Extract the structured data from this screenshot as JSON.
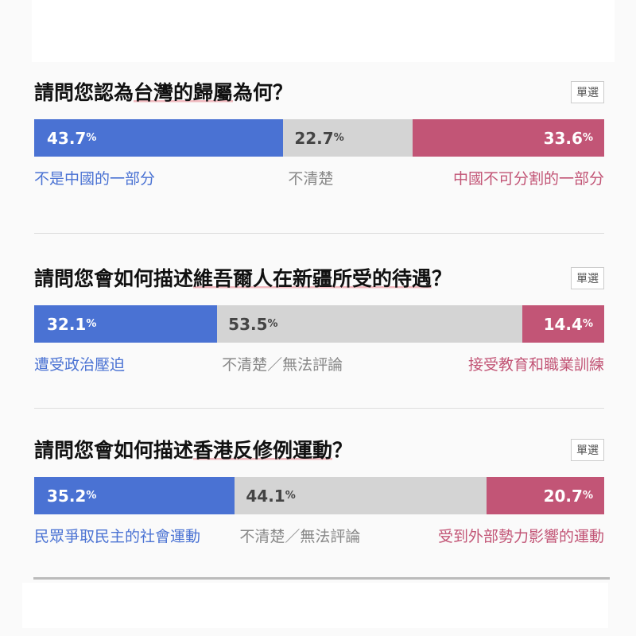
{
  "chart_data": [
    {
      "type": "bar",
      "stacked": true,
      "orientation": "horizontal",
      "title_parts": [
        "請問您認為",
        "台灣的歸屬",
        "為何？"
      ],
      "badge": "單選",
      "categories": [
        "不是中國的一部分",
        "不清楚",
        "中國不可分割的一部分"
      ],
      "values": [
        43.7,
        22.7,
        33.6
      ],
      "value_labels": [
        "43.7",
        "22.7",
        "33.6"
      ],
      "unit": "%"
    },
    {
      "type": "bar",
      "stacked": true,
      "orientation": "horizontal",
      "title_parts": [
        "請問您會如何描述",
        "維吾爾人在新疆所受的待遇",
        "？"
      ],
      "badge": "單選",
      "categories": [
        "遭受政治壓迫",
        "不清楚／無法評論",
        "接受教育和職業訓練"
      ],
      "values": [
        32.1,
        53.5,
        14.4
      ],
      "value_labels": [
        "32.1",
        "53.5",
        "14.4"
      ],
      "unit": "%"
    },
    {
      "type": "bar",
      "stacked": true,
      "orientation": "horizontal",
      "title_parts": [
        "請問您會如何描述",
        "香港反修例運動",
        "？"
      ],
      "badge": "單選",
      "categories": [
        "民眾爭取民主的社會運動",
        "不清楚／無法評論",
        "受到外部勢力影響的運動"
      ],
      "values": [
        35.2,
        44.1,
        20.7
      ],
      "value_labels": [
        "35.2",
        "44.1",
        "20.7"
      ],
      "unit": "%"
    }
  ],
  "colors": {
    "support": "#4a72d3",
    "unsure": "#d4d4d4",
    "oppose": "#c25576"
  }
}
